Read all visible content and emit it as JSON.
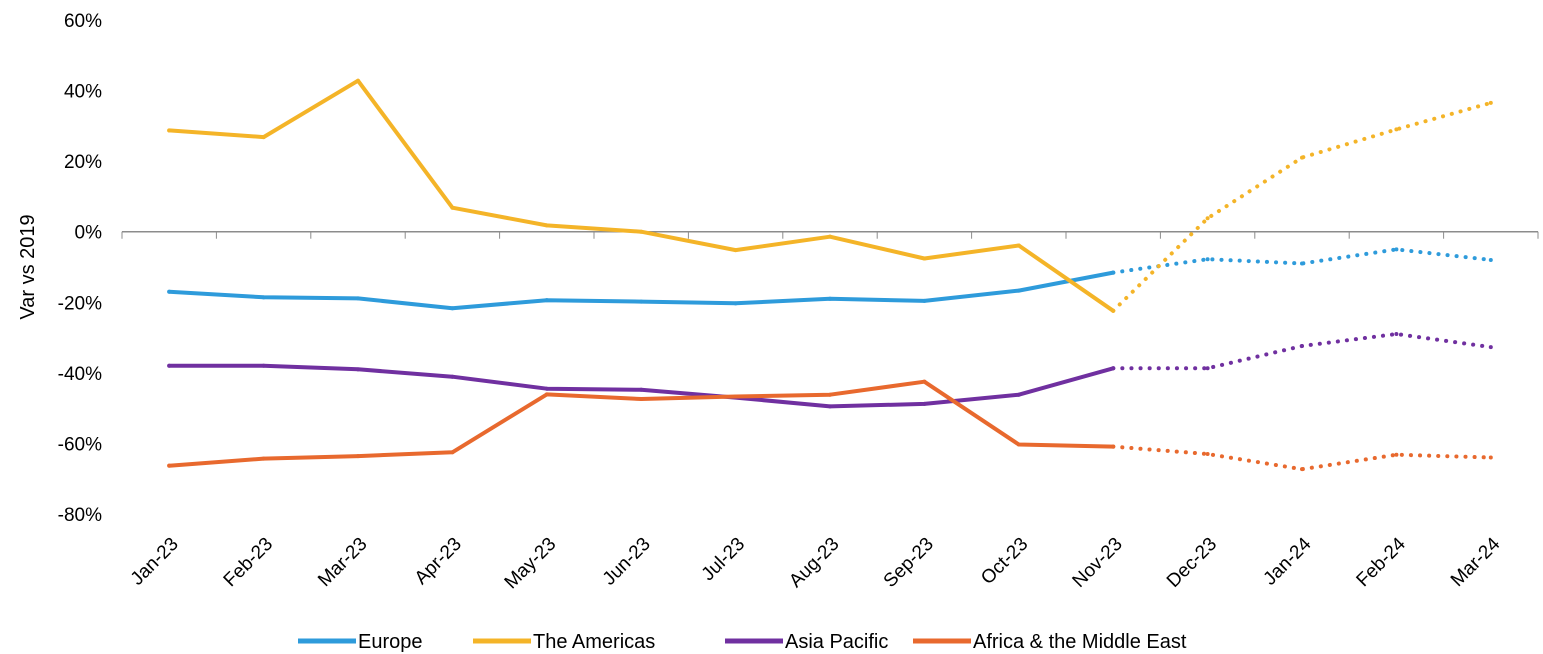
{
  "chart_data": {
    "type": "line",
    "ylabel": "Var vs 2019",
    "xlabel": "",
    "ylim": [
      -80,
      60
    ],
    "y_ticks": [
      "60%",
      "40%",
      "20%",
      "0%",
      "-20%",
      "-40%",
      "-60%",
      "-80%"
    ],
    "y_tick_values": [
      60,
      40,
      20,
      0,
      -20,
      -40,
      -60,
      -80
    ],
    "categories": [
      "Jan-23",
      "Feb-23",
      "Mar-23",
      "Apr-23",
      "May-23",
      "Jun-23",
      "Jul-23",
      "Aug-23",
      "Sep-23",
      "Oct-23",
      "Nov-23",
      "Dec-23",
      "Jan-24",
      "Feb-24",
      "Mar-24"
    ],
    "actual_until_index": 10,
    "grid": false,
    "legend_position": "bottom",
    "series": [
      {
        "name": "Europe",
        "color": "#2E9BDB",
        "values": [
          -17,
          -18.6,
          -18.9,
          -21.7,
          -19.4,
          -19.8,
          -20.3,
          -19,
          -19.6,
          -16.7,
          -11.6,
          -7.8,
          -9,
          -5,
          -8
        ]
      },
      {
        "name": "The Americas",
        "color": "#F4B428",
        "values": [
          28.7,
          26.8,
          42.8,
          6.8,
          1.8,
          0,
          -5.2,
          -1.4,
          -7.6,
          -3.9,
          -22.4,
          3.8,
          21,
          29,
          36.5
        ]
      },
      {
        "name": "Asia Pacific",
        "color": "#7030A0",
        "values": [
          -38,
          -38,
          -39,
          -41.1,
          -44.5,
          -44.8,
          -47,
          -49.5,
          -48.8,
          -46.2,
          -38.7,
          -38.7,
          -32.4,
          -29,
          -32.7
        ]
      },
      {
        "name": "Africa & the Middle East",
        "color": "#E8692E",
        "values": [
          -66.3,
          -64.3,
          -63.6,
          -62.5,
          -46.1,
          -47.4,
          -46.7,
          -46.2,
          -42.5,
          -60.3,
          -60.9,
          -63,
          -67.3,
          -63.2,
          -64
        ]
      }
    ]
  }
}
